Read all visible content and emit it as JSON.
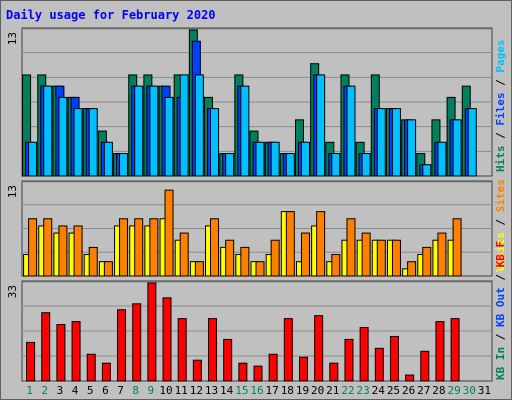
{
  "title": "Daily usage for February 2020",
  "colors": {
    "background": "#c0c0c0",
    "frame": "#808080",
    "title": "#0000ff",
    "hits": "#00805c",
    "files": "#0040ff",
    "pages": "#00c0ff",
    "visits": "#ff8000",
    "sites": "#ffff00",
    "kb_in": "#ff0000",
    "kb_out": "#ff0000",
    "weekend_label": "#00805c",
    "weekday_label": "#000000"
  },
  "chart_data": [
    {
      "type": "bar",
      "name": "hits-files-pages",
      "y_max_label": "13",
      "ylim": [
        0,
        13
      ],
      "categories": [
        "1",
        "2",
        "3",
        "4",
        "5",
        "6",
        "7",
        "8",
        "9",
        "10",
        "11",
        "12",
        "13",
        "14",
        "15",
        "16",
        "17",
        "18",
        "19",
        "20",
        "21",
        "22",
        "23",
        "24",
        "25",
        "26",
        "27",
        "28",
        "29",
        "30",
        "31"
      ],
      "series": [
        {
          "name": "Hits",
          "values": [
            9,
            9,
            8,
            7,
            6,
            4,
            2,
            9,
            9,
            8,
            9,
            13,
            7,
            2,
            9,
            4,
            3,
            2,
            5,
            10,
            3,
            9,
            3,
            9,
            6,
            5,
            2,
            5,
            7,
            8,
            0
          ]
        },
        {
          "name": "Files",
          "values": [
            3,
            8,
            8,
            7,
            6,
            3,
            2,
            8,
            8,
            8,
            7,
            12,
            6,
            2,
            8,
            3,
            3,
            2,
            3,
            9,
            2,
            8,
            2,
            6,
            6,
            5,
            1,
            3,
            5,
            6,
            0
          ]
        },
        {
          "name": "Pages",
          "values": [
            3,
            8,
            7,
            6,
            6,
            3,
            2,
            8,
            8,
            7,
            9,
            9,
            6,
            2,
            8,
            3,
            3,
            2,
            3,
            9,
            2,
            8,
            2,
            6,
            6,
            5,
            1,
            3,
            5,
            6,
            0
          ]
        }
      ]
    },
    {
      "type": "bar",
      "name": "sites-visits",
      "y_max_label": "13",
      "ylim": [
        0,
        13
      ],
      "series": [
        {
          "name": "Visits",
          "values": [
            8,
            8,
            7,
            7,
            4,
            2,
            8,
            8,
            8,
            12,
            6,
            2,
            8,
            5,
            4,
            2,
            5,
            9,
            6,
            9,
            3,
            8,
            6,
            5,
            5,
            2,
            4,
            6,
            8,
            0,
            0
          ]
        },
        {
          "name": "Sites",
          "values": [
            3,
            7,
            6,
            6,
            3,
            2,
            7,
            7,
            7,
            8,
            5,
            2,
            7,
            4,
            3,
            2,
            3,
            9,
            2,
            7,
            2,
            5,
            5,
            5,
            5,
            1,
            3,
            5,
            5,
            0,
            0
          ]
        }
      ]
    },
    {
      "type": "bar",
      "name": "kb",
      "y_max_label": "33",
      "ylim": [
        0,
        33
      ],
      "series": [
        {
          "name": "KB Out",
          "values": [
            13,
            23,
            19,
            20,
            9,
            6,
            24,
            26,
            33,
            28,
            21,
            7,
            21,
            14,
            6,
            5,
            9,
            21,
            8,
            22,
            6,
            14,
            18,
            11,
            15,
            2,
            10,
            20,
            21,
            0,
            0
          ]
        },
        {
          "name": "KB In",
          "values": [
            0,
            0,
            0,
            0,
            0,
            0,
            0,
            0,
            0,
            0,
            0,
            0,
            0,
            0,
            0,
            0,
            0,
            0,
            0,
            0,
            0,
            0,
            0,
            0,
            0,
            0,
            0,
            0,
            0,
            0,
            0
          ]
        }
      ]
    }
  ],
  "x_labels": [
    "1",
    "2",
    "3",
    "4",
    "5",
    "6",
    "7",
    "8",
    "9",
    "10",
    "11",
    "12",
    "13",
    "14",
    "15",
    "16",
    "17",
    "18",
    "19",
    "20",
    "21",
    "22",
    "23",
    "24",
    "25",
    "26",
    "27",
    "28",
    "29",
    "30",
    "31"
  ],
  "weekend_days": [
    1,
    2,
    8,
    9,
    15,
    16,
    22,
    23,
    29,
    30
  ],
  "right_legend": {
    "top": [
      {
        "text": "Hits",
        "color": "#00805c"
      },
      {
        "text": "Files",
        "color": "#0040ff"
      },
      {
        "text": "Pages",
        "color": "#00c0ff"
      }
    ],
    "middle": [
      {
        "text": "Visits",
        "color": "#ffff00"
      },
      {
        "text": "Sites",
        "color": "#ff8000"
      }
    ],
    "bottom": [
      {
        "text": "KB In",
        "color": "#00805c"
      },
      {
        "text": "KB Out",
        "color": "#0040ff"
      },
      {
        "text": "KB F",
        "color": "#ff0000"
      }
    ],
    "separator": "/"
  }
}
